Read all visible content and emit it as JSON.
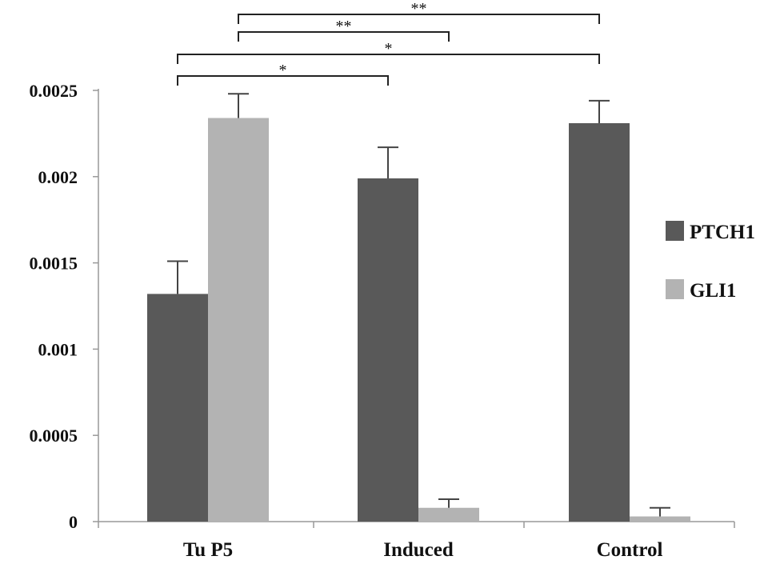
{
  "chart_data": {
    "type": "bar",
    "title": "",
    "xlabel": "",
    "ylabel": "",
    "categories": [
      "Tu P5",
      "Induced",
      "Control"
    ],
    "series": [
      {
        "name": "PTCH1",
        "color": "#595959",
        "values": [
          0.00132,
          0.00199,
          0.00231
        ],
        "errors": [
          0.00019,
          0.00018,
          0.00013
        ]
      },
      {
        "name": "GLI1",
        "color": "#b3b3b3",
        "values": [
          0.00234,
          8e-05,
          3e-05
        ],
        "errors": [
          0.00014,
          5e-05,
          5e-05
        ]
      }
    ],
    "ylim": [
      0,
      0.0025
    ],
    "yticks": [
      "0",
      "0.0005",
      "0.001",
      "0.0015",
      "0.002",
      "0.0025"
    ],
    "legend_position": "right",
    "grid": false,
    "significance": [
      {
        "from": "Tu P5 GLI1",
        "to": "Control PTCH1",
        "label": "**"
      },
      {
        "from": "Tu P5 GLI1",
        "to": "Induced GLI1",
        "label": "**"
      },
      {
        "from": "Tu P5 PTCH1",
        "to": "Control PTCH1",
        "label": "*"
      },
      {
        "from": "Tu P5 PTCH1",
        "to": "Induced PTCH1",
        "label": "*"
      }
    ]
  }
}
